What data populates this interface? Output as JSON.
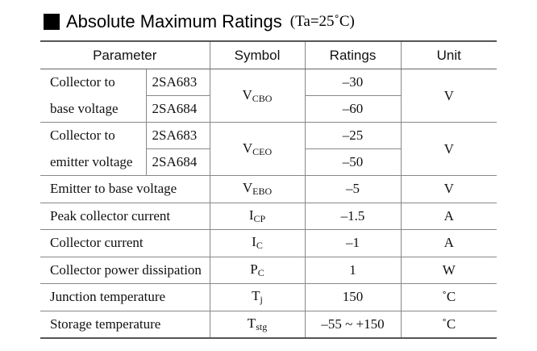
{
  "heading": {
    "title": "Absolute Maximum Ratings",
    "condition": "(Ta=25˚C)"
  },
  "table": {
    "headers": {
      "parameter": "Parameter",
      "symbol": "Symbol",
      "ratings": "Ratings",
      "unit": "Unit"
    },
    "groups": [
      {
        "line1": "Collector to",
        "line2": "base voltage",
        "models": [
          "2SA683",
          "2SA684"
        ],
        "symbol_main": "V",
        "symbol_sub": "CBO",
        "ratings": [
          "–30",
          "–60"
        ],
        "unit": "V"
      },
      {
        "line1": "Collector to",
        "line2": "emitter voltage",
        "models": [
          "2SA683",
          "2SA684"
        ],
        "symbol_main": "V",
        "symbol_sub": "CEO",
        "ratings": [
          "–25",
          "–50"
        ],
        "unit": "V"
      }
    ],
    "rows": [
      {
        "parameter": "Emitter to base voltage",
        "symbol_main": "V",
        "symbol_sub": "EBO",
        "rating": "–5",
        "unit": "V"
      },
      {
        "parameter": "Peak collector current",
        "symbol_main": "I",
        "symbol_sub": "CP",
        "rating": "–1.5",
        "unit": "A"
      },
      {
        "parameter": "Collector current",
        "symbol_main": "I",
        "symbol_sub": "C",
        "rating": "–1",
        "unit": "A"
      },
      {
        "parameter": "Collector power dissipation",
        "symbol_main": "P",
        "symbol_sub": "C",
        "rating": "1",
        "unit": "W"
      },
      {
        "parameter": "Junction temperature",
        "symbol_main": "T",
        "symbol_sub": "j",
        "rating": "150",
        "unit": "˚C"
      },
      {
        "parameter": "Storage temperature",
        "symbol_main": "T",
        "symbol_sub": "stg",
        "rating": "–55 ~ +150",
        "unit": "˚C"
      }
    ]
  }
}
